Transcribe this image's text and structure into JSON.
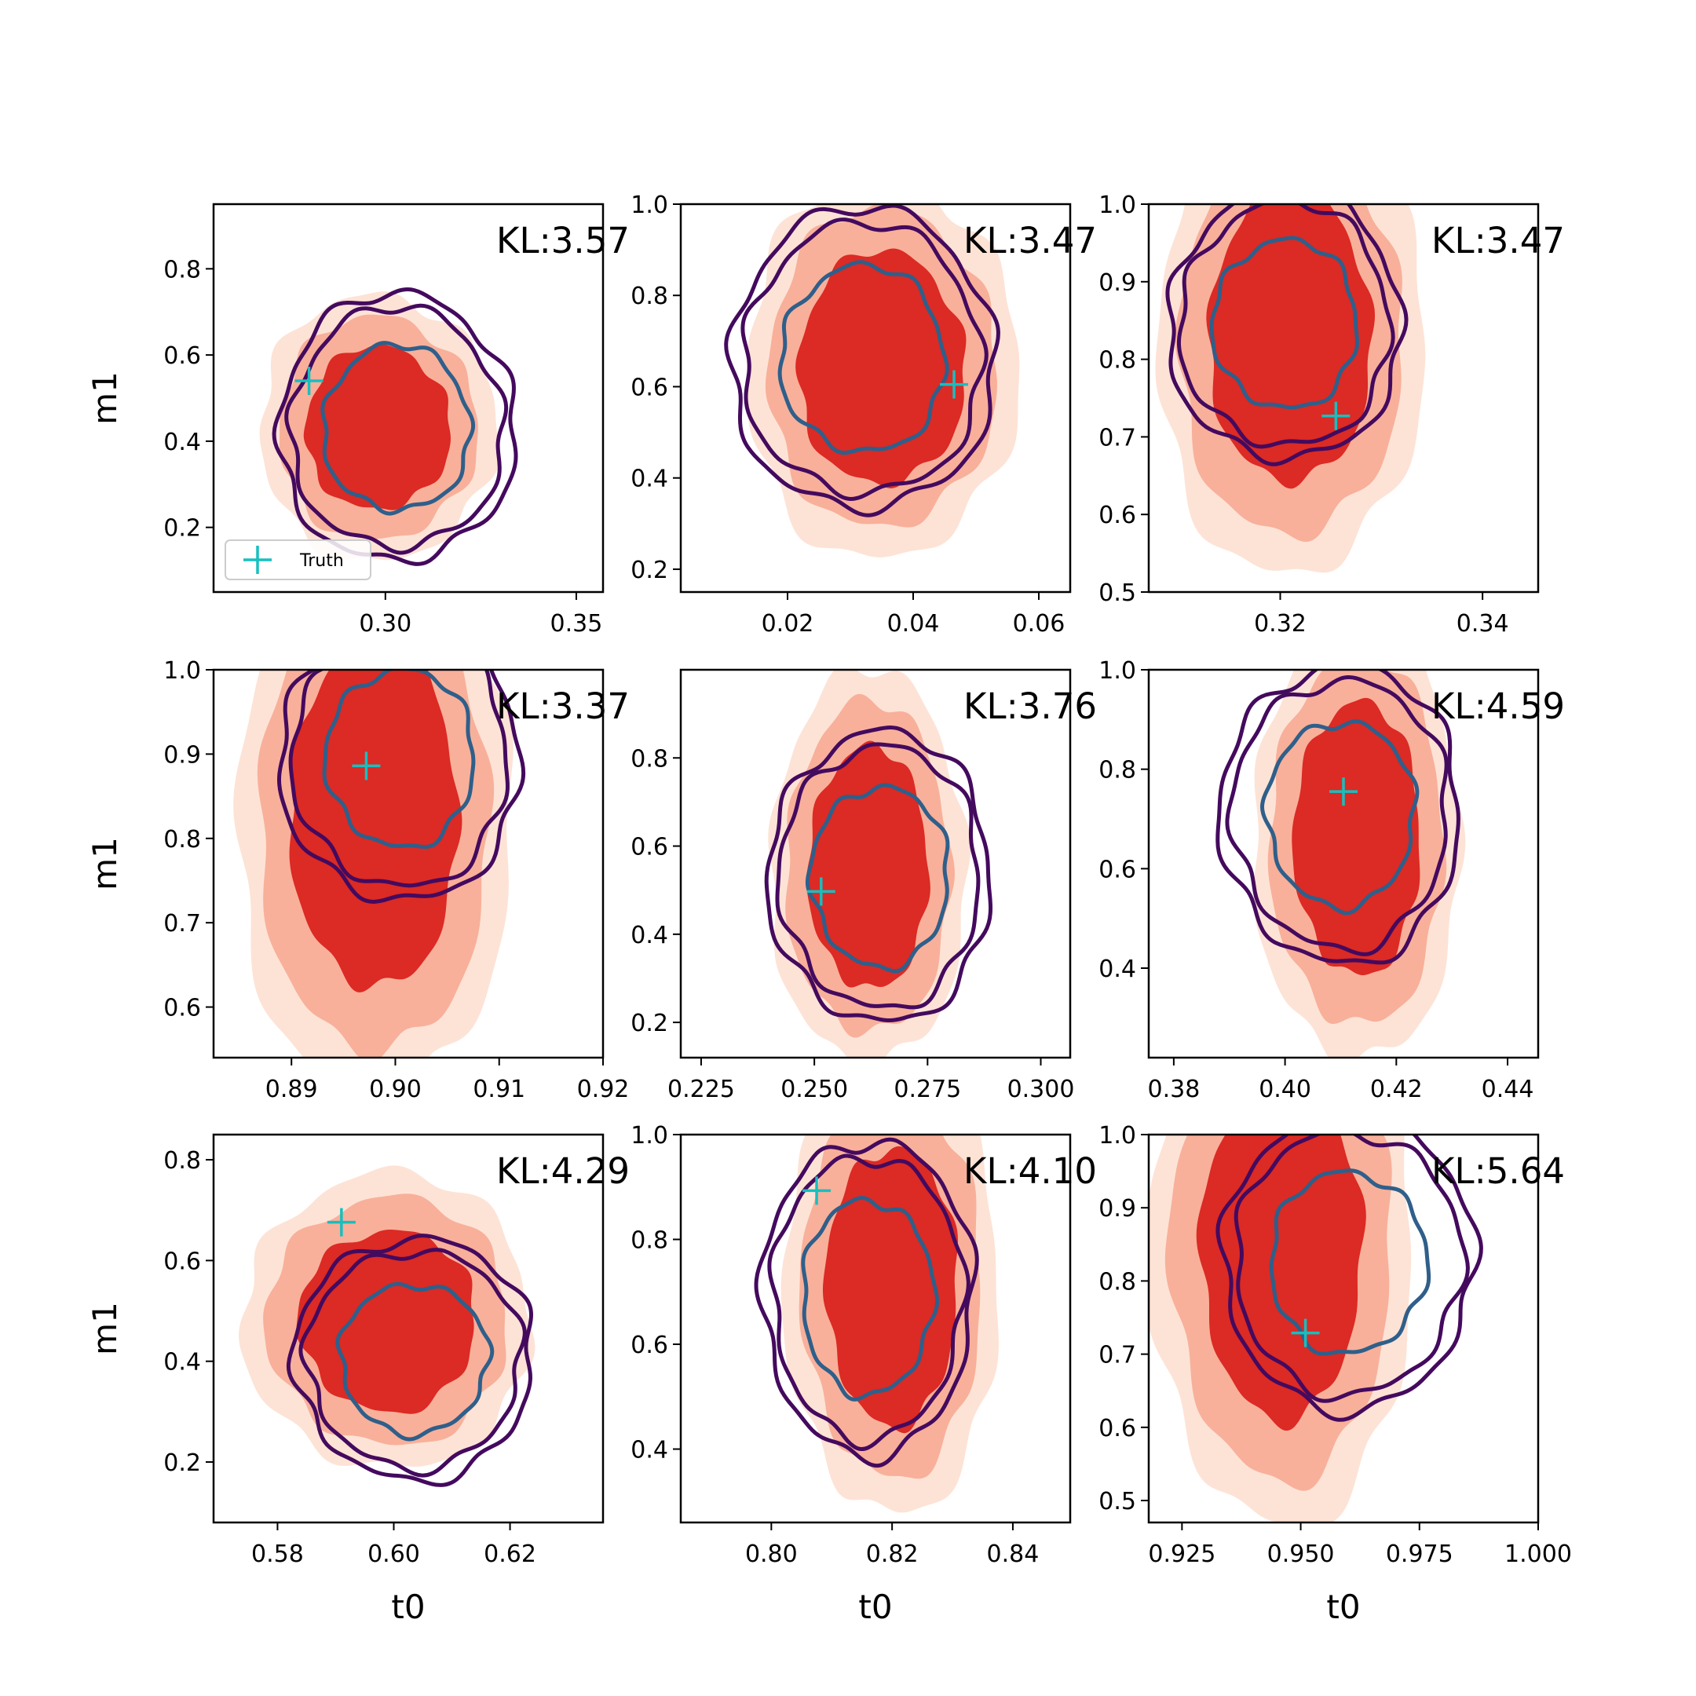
{
  "colors": {
    "truth": "#17bfbf",
    "fill_outer": "#fde3d6",
    "fill_mid": "#f8b09a",
    "fill_inner": "#dc2a24",
    "contour_outer": "#440a5e",
    "contour_inner": "#2f5f8a"
  },
  "legend": {
    "label": "Truth",
    "icon": "cyan-plus-marker"
  },
  "chart_data": [
    {
      "type": "contour",
      "kl_label": "KL:3.57",
      "xlabel": "",
      "ylabel": "m1",
      "xlim": [
        0.255,
        0.357
      ],
      "ylim": [
        0.05,
        0.95
      ],
      "xticks": [
        0.3,
        0.35
      ],
      "xtick_labels": [
        "0.30",
        "0.35"
      ],
      "yticks": [
        0.2,
        0.4,
        0.6,
        0.8
      ],
      "ytick_labels": [
        "0.2",
        "0.4",
        "0.6",
        "0.8"
      ],
      "truth": [
        0.28,
        0.54
      ],
      "post_center": [
        0.298,
        0.43
      ],
      "post_spread": [
        0.02,
        0.2
      ],
      "post_tilt": -0.8,
      "ref_center": [
        0.303,
        0.43
      ],
      "ref_spread": [
        0.031,
        0.31
      ],
      "show_legend": true
    },
    {
      "type": "contour",
      "kl_label": "KL:3.47",
      "xlabel": "",
      "ylabel": "",
      "xlim": [
        0.003,
        0.065
      ],
      "ylim": [
        0.15,
        1.0
      ],
      "xticks": [
        0.02,
        0.04,
        0.06
      ],
      "xtick_labels": [
        "0.02",
        "0.04",
        "0.06"
      ],
      "yticks": [
        0.2,
        0.4,
        0.6,
        0.8,
        1.0
      ],
      "ytick_labels": [
        "0.2",
        "0.4",
        "0.6",
        "0.8",
        "1.0"
      ],
      "truth": [
        0.0465,
        0.605
      ],
      "post_center": [
        0.035,
        0.64
      ],
      "post_spread": [
        0.014,
        0.27
      ],
      "post_tilt": -0.7,
      "ref_center": [
        0.032,
        0.66
      ],
      "ref_spread": [
        0.021,
        0.33
      ],
      "show_legend": false
    },
    {
      "type": "contour",
      "kl_label": "KL:3.47",
      "xlabel": "",
      "ylabel": "",
      "xlim": [
        0.307,
        0.3455
      ],
      "ylim": [
        0.5,
        1.0
      ],
      "xticks": [
        0.32,
        0.34
      ],
      "xtick_labels": [
        "0.32",
        "0.34"
      ],
      "yticks": [
        0.5,
        0.6,
        0.7,
        0.8,
        0.9,
        1.0
      ],
      "ytick_labels": [
        "0.5",
        "0.6",
        "0.7",
        "0.8",
        "0.9",
        "1.0"
      ],
      "truth": [
        0.3255,
        0.727
      ],
      "post_center": [
        0.321,
        0.83
      ],
      "post_spread": [
        0.0085,
        0.2
      ],
      "post_tilt": -0.6,
      "ref_center": [
        0.3205,
        0.845
      ],
      "ref_spread": [
        0.0115,
        0.175
      ],
      "show_legend": false
    },
    {
      "type": "contour",
      "kl_label": "KL:3.37",
      "xlabel": "",
      "ylabel": "m1",
      "xlim": [
        0.8825,
        0.92
      ],
      "ylim": [
        0.54,
        1.0
      ],
      "xticks": [
        0.89,
        0.9,
        0.91,
        0.92
      ],
      "xtick_labels": [
        "0.89",
        "0.90",
        "0.91",
        "0.92"
      ],
      "yticks": [
        0.6,
        0.7,
        0.8,
        0.9,
        1.0
      ],
      "ytick_labels": [
        "0.6",
        "0.7",
        "0.8",
        "0.9",
        "1.0"
      ],
      "truth": [
        0.8972,
        0.886
      ],
      "post_center": [
        0.898,
        0.83
      ],
      "post_spread": [
        0.0085,
        0.22
      ],
      "post_tilt": -0.75,
      "ref_center": [
        0.9005,
        0.895
      ],
      "ref_spread": [
        0.0115,
        0.17
      ],
      "show_legend": false
    },
    {
      "type": "contour",
      "kl_label": "KL:3.76",
      "xlabel": "",
      "ylabel": "",
      "xlim": [
        0.2205,
        0.3065
      ],
      "ylim": [
        0.12,
        1.0
      ],
      "xticks": [
        0.225,
        0.25,
        0.275,
        0.3
      ],
      "xtick_labels": [
        "0.225",
        "0.250",
        "0.275",
        "0.300"
      ],
      "yticks": [
        0.2,
        0.4,
        0.6,
        0.8
      ],
      "ytick_labels": [
        "0.2",
        "0.4",
        "0.6",
        "0.8"
      ],
      "truth": [
        0.2515,
        0.497
      ],
      "post_center": [
        0.262,
        0.55
      ],
      "post_spread": [
        0.014,
        0.29
      ],
      "post_tilt": -0.7,
      "ref_center": [
        0.2645,
        0.53
      ],
      "ref_spread": [
        0.0245,
        0.33
      ],
      "show_legend": false
    },
    {
      "type": "contour",
      "kl_label": "KL:4.59",
      "xlabel": "",
      "ylabel": "",
      "xlim": [
        0.3755,
        0.4455
      ],
      "ylim": [
        0.22,
        1.0
      ],
      "xticks": [
        0.38,
        0.4,
        0.42,
        0.44
      ],
      "xtick_labels": [
        "0.38",
        "0.40",
        "0.42",
        "0.44"
      ],
      "yticks": [
        0.4,
        0.6,
        0.8,
        1.0
      ],
      "ytick_labels": [
        "0.4",
        "0.6",
        "0.8",
        "1.0"
      ],
      "truth": [
        0.4105,
        0.755
      ],
      "post_center": [
        0.413,
        0.66
      ],
      "post_spread": [
        0.012,
        0.29
      ],
      "post_tilt": -0.65,
      "ref_center": [
        0.41,
        0.71
      ],
      "ref_spread": [
        0.0215,
        0.3
      ],
      "show_legend": false
    },
    {
      "type": "contour",
      "kl_label": "KL:4.29",
      "xlabel": "t0",
      "ylabel": "m1",
      "xlim": [
        0.569,
        0.636
      ],
      "ylim": [
        0.08,
        0.85
      ],
      "xticks": [
        0.58,
        0.6,
        0.62
      ],
      "xtick_labels": [
        "0.58",
        "0.60",
        "0.62"
      ],
      "yticks": [
        0.2,
        0.4,
        0.6,
        0.8
      ],
      "ytick_labels": [
        "0.2",
        "0.4",
        "0.6",
        "0.8"
      ],
      "truth": [
        0.591,
        0.676
      ],
      "post_center": [
        0.599,
        0.48
      ],
      "post_spread": [
        0.016,
        0.19
      ],
      "post_tilt": -0.75,
      "ref_center": [
        0.6035,
        0.405
      ],
      "ref_spread": [
        0.0205,
        0.24
      ],
      "show_legend": false
    },
    {
      "type": "contour",
      "kl_label": "KL:4.10",
      "xlabel": "t0",
      "ylabel": "",
      "xlim": [
        0.785,
        0.8495
      ],
      "ylim": [
        0.26,
        1.0
      ],
      "xticks": [
        0.8,
        0.82,
        0.84
      ],
      "xtick_labels": [
        "0.80",
        "0.82",
        "0.84"
      ],
      "yticks": [
        0.4,
        0.6,
        0.8,
        1.0
      ],
      "ytick_labels": [
        "0.4",
        "0.6",
        "0.8",
        "1.0"
      ],
      "truth": [
        0.8075,
        0.893
      ],
      "post_center": [
        0.82,
        0.71
      ],
      "post_spread": [
        0.0115,
        0.28
      ],
      "post_tilt": -0.6,
      "ref_center": [
        0.816,
        0.69
      ],
      "ref_spread": [
        0.0175,
        0.3
      ],
      "show_legend": false
    },
    {
      "type": "contour",
      "kl_label": "KL:5.64",
      "xlabel": "t0",
      "ylabel": "",
      "xlim": [
        0.918,
        1.0
      ],
      "ylim": [
        0.47,
        1.0
      ],
      "xticks": [
        0.925,
        0.95,
        0.975,
        1.0
      ],
      "xtick_labels": [
        "0.925",
        "0.950",
        "0.975",
        "1.000"
      ],
      "yticks": [
        0.5,
        0.6,
        0.7,
        0.8,
        0.9,
        1.0
      ],
      "ytick_labels": [
        "0.5",
        "0.6",
        "0.7",
        "0.8",
        "0.9",
        "1.0"
      ],
      "truth": [
        0.951,
        0.729
      ],
      "post_center": [
        0.946,
        0.84
      ],
      "post_spread": [
        0.018,
        0.24
      ],
      "post_tilt": -0.55,
      "ref_center": [
        0.96,
        0.825
      ],
      "ref_spread": [
        0.0265,
        0.2
      ],
      "show_legend": false
    }
  ]
}
